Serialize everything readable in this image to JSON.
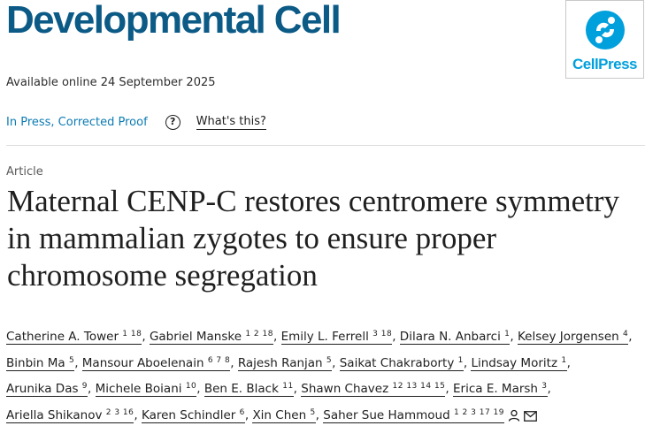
{
  "journal": {
    "title": "Developmental Cell",
    "publisher_logo_text": "CellPress",
    "publisher_logo_color": "#00a0dd",
    "title_color": "#0c5a86"
  },
  "availability": "Available online 24 September 2025",
  "status": {
    "in_press": "In Press, Corrected Proof",
    "help_icon_label": "?",
    "whats_this": "What's this?"
  },
  "article": {
    "type": "Article",
    "title": "Maternal CENP-C restores centromere symmetry in mammalian zygotes to ensure proper chromosome segregation"
  },
  "authors": [
    {
      "name": "Catherine A. Tower",
      "aff": "1 18",
      "sep": ","
    },
    {
      "name": "Gabriel Manske",
      "aff": "1 2 18",
      "sep": ","
    },
    {
      "name": "Emily L. Ferrell",
      "aff": "3 18",
      "sep": ","
    },
    {
      "name": "Dilara N. Anbarci",
      "aff": "1",
      "sep": ","
    },
    {
      "name": "Kelsey Jorgensen",
      "aff": "4",
      "sep": ","
    },
    {
      "name": "Binbin Ma",
      "aff": "5",
      "sep": ","
    },
    {
      "name": "Mansour Aboelenain",
      "aff": "6 7 8",
      "sep": ","
    },
    {
      "name": "Rajesh Ranjan",
      "aff": "5",
      "sep": ","
    },
    {
      "name": "Saikat Chakraborty",
      "aff": "1",
      "sep": ","
    },
    {
      "name": "Lindsay Moritz",
      "aff": "1",
      "sep": ","
    },
    {
      "name": "Arunika Das",
      "aff": "9",
      "sep": ","
    },
    {
      "name": "Michele Boiani",
      "aff": "10",
      "sep": ","
    },
    {
      "name": "Ben E. Black",
      "aff": "11",
      "sep": ","
    },
    {
      "name": "Shawn Chavez",
      "aff": "12 13 14 15",
      "sep": ","
    },
    {
      "name": "Erica E. Marsh",
      "aff": "3",
      "sep": ","
    },
    {
      "name": "Ariella Shikanov",
      "aff": "2 3 16",
      "sep": ","
    },
    {
      "name": "Karen Schindler",
      "aff": "6",
      "sep": ","
    },
    {
      "name": "Xin Chen",
      "aff": "5",
      "sep": ","
    },
    {
      "name": "Saher Sue Hammoud",
      "aff": "1 2 3 17 19",
      "sep": "",
      "icons": [
        "person-icon",
        "envelope-icon"
      ]
    }
  ]
}
